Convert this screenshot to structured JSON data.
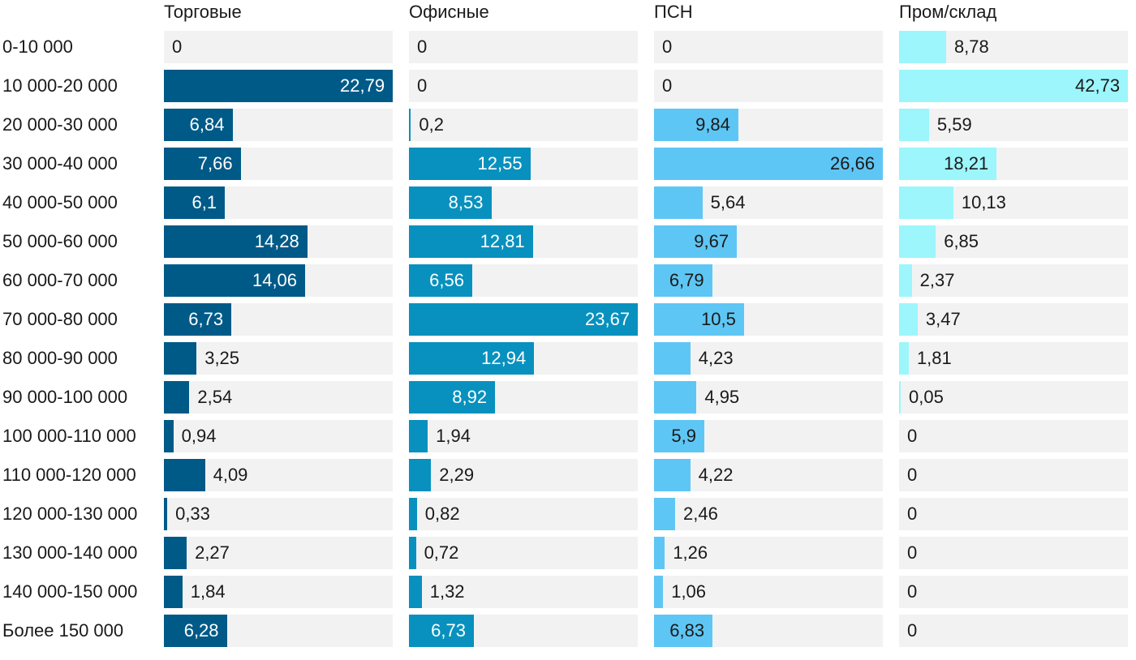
{
  "chart_data": {
    "type": "bar",
    "orientation": "horizontal",
    "layout": "small-multiples",
    "categories": [
      "0-10 000",
      "10 000-20 000",
      "20 000-30 000",
      "30 000-40 000",
      "40 000-50 000",
      "50 000-60 000",
      "60 000-70 000",
      "70 000-80 000",
      "80 000-90 000",
      "90 000-100 000",
      "100 000-110 000",
      "110 000-120 000",
      "120 000-130 000",
      "130 000-140 000",
      "140 000-150 000",
      "Более 150 000"
    ],
    "series": [
      {
        "name": "Торговые",
        "color": "#005a87",
        "values": [
          0,
          22.79,
          6.84,
          7.66,
          6.1,
          14.28,
          14.06,
          6.73,
          3.25,
          2.54,
          0.94,
          4.09,
          0.33,
          2.27,
          1.84,
          6.28
        ],
        "labels": [
          "0",
          "22,79",
          "6,84",
          "7,66",
          "6,1",
          "14,28",
          "14,06",
          "6,73",
          "3,25",
          "2,54",
          "0,94",
          "4,09",
          "0,33",
          "2,27",
          "1,84",
          "6,28"
        ],
        "max": 22.79
      },
      {
        "name": "Офисные",
        "color": "#0891be",
        "values": [
          0,
          0,
          0.2,
          12.55,
          8.53,
          12.81,
          6.56,
          23.67,
          12.94,
          8.92,
          1.94,
          2.29,
          0.82,
          0.72,
          1.32,
          6.73
        ],
        "labels": [
          "0",
          "0",
          "0,2",
          "12,55",
          "8,53",
          "12,81",
          "6,56",
          "23,67",
          "12,94",
          "8,92",
          "1,94",
          "2,29",
          "0,82",
          "0,72",
          "1,32",
          "6,73"
        ],
        "max": 23.67
      },
      {
        "name": "ПСН",
        "color": "#5ec6f4",
        "values": [
          0,
          0,
          9.84,
          26.66,
          5.64,
          9.67,
          6.79,
          10.5,
          4.23,
          4.95,
          5.9,
          4.22,
          2.46,
          1.26,
          1.06,
          6.83
        ],
        "labels": [
          "0",
          "0",
          "9,84",
          "26,66",
          "5,64",
          "9,67",
          "6,79",
          "10,5",
          "4,23",
          "4,95",
          "5,9",
          "4,22",
          "2,46",
          "1,26",
          "1,06",
          "6,83"
        ],
        "max": 26.66
      },
      {
        "name": "Пром/склад",
        "color": "#9cf6fb",
        "values": [
          8.78,
          42.73,
          5.59,
          18.21,
          10.13,
          6.85,
          2.37,
          3.47,
          1.81,
          0.05,
          0,
          0,
          0,
          0,
          0,
          0
        ],
        "labels": [
          "8,78",
          "42,73",
          "5,59",
          "18,21",
          "10,13",
          "6,85",
          "2,37",
          "3,47",
          "1,81",
          "0,05",
          "0",
          "0",
          "0",
          "0",
          "0",
          "0"
        ],
        "max": 42.73
      }
    ],
    "title": "",
    "xlabel": "",
    "ylabel": "",
    "grid": false,
    "legend": "none"
  }
}
